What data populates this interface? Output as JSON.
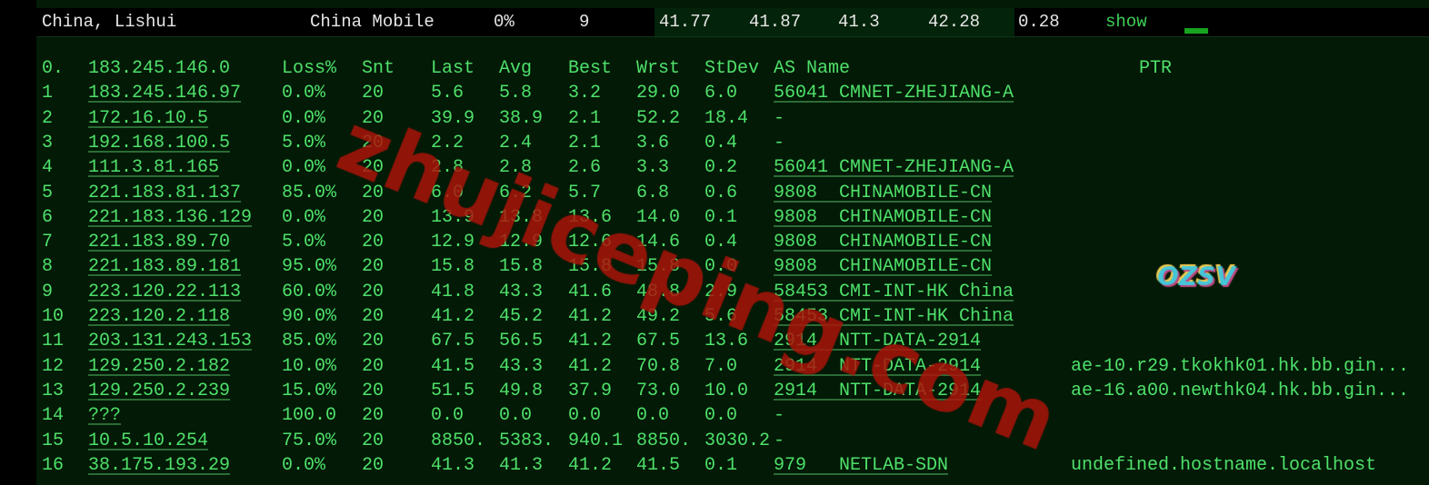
{
  "summary": {
    "location": "China, Lishui",
    "isp": "China Mobile",
    "loss": "0%",
    "hops": "9",
    "last": "41.77",
    "avg": "41.87",
    "best": "41.3",
    "worst": "42.28",
    "stdev": "0.28",
    "show_label": "show"
  },
  "header": {
    "num": "0.",
    "host": "183.245.146.0",
    "loss": "Loss%",
    "snt": "Snt",
    "last": "Last",
    "avg": "Avg",
    "best": "Best",
    "wrst": "Wrst",
    "stdev": "StDev",
    "as": "AS Name",
    "ptr": "PTR"
  },
  "rows": [
    {
      "num": "1",
      "host": "183.245.146.97",
      "loss": "0.0%",
      "snt": "20",
      "last": "5.6",
      "avg": "5.8",
      "best": "3.2",
      "wrst": "29.0",
      "stdev": "6.0",
      "as": "56041 CMNET-ZHEJIANG-A",
      "ptr": ""
    },
    {
      "num": "2",
      "host": "172.16.10.5",
      "loss": "0.0%",
      "snt": "20",
      "last": "39.9",
      "avg": "38.9",
      "best": "2.1",
      "wrst": "52.2",
      "stdev": "18.4",
      "as": "-",
      "ptr": ""
    },
    {
      "num": "3",
      "host": "192.168.100.5",
      "loss": "5.0%",
      "snt": "20",
      "last": "2.2",
      "avg": "2.4",
      "best": "2.1",
      "wrst": "3.6",
      "stdev": "0.4",
      "as": "-",
      "ptr": ""
    },
    {
      "num": "4",
      "host": "111.3.81.165",
      "loss": "0.0%",
      "snt": "20",
      "last": "2.8",
      "avg": "2.8",
      "best": "2.6",
      "wrst": "3.3",
      "stdev": "0.2",
      "as": "56041 CMNET-ZHEJIANG-A",
      "ptr": ""
    },
    {
      "num": "5",
      "host": "221.183.81.137",
      "loss": "85.0%",
      "snt": "20",
      "last": "6.0",
      "avg": "6.2",
      "best": "5.7",
      "wrst": "6.8",
      "stdev": "0.6",
      "as": "9808  CHINAMOBILE-CN",
      "ptr": ""
    },
    {
      "num": "6",
      "host": "221.183.136.129",
      "loss": "0.0%",
      "snt": "20",
      "last": "13.9",
      "avg": "13.8",
      "best": "13.6",
      "wrst": "14.0",
      "stdev": "0.1",
      "as": "9808  CHINAMOBILE-CN",
      "ptr": ""
    },
    {
      "num": "7",
      "host": "221.183.89.70",
      "loss": "5.0%",
      "snt": "20",
      "last": "12.9",
      "avg": "12.9",
      "best": "12.6",
      "wrst": "14.6",
      "stdev": "0.4",
      "as": "9808  CHINAMOBILE-CN",
      "ptr": ""
    },
    {
      "num": "8",
      "host": "221.183.89.181",
      "loss": "95.0%",
      "snt": "20",
      "last": "15.8",
      "avg": "15.8",
      "best": "15.8",
      "wrst": "15.8",
      "stdev": "0.0",
      "as": "9808  CHINAMOBILE-CN",
      "ptr": ""
    },
    {
      "num": "9",
      "host": "223.120.22.113",
      "loss": "60.0%",
      "snt": "20",
      "last": "41.8",
      "avg": "43.3",
      "best": "41.6",
      "wrst": "48.8",
      "stdev": "2.9",
      "as": "58453 CMI-INT-HK China",
      "ptr": ""
    },
    {
      "num": "10",
      "host": "223.120.2.118",
      "loss": "90.0%",
      "snt": "20",
      "last": "41.2",
      "avg": "45.2",
      "best": "41.2",
      "wrst": "49.2",
      "stdev": "5.6",
      "as": "58453 CMI-INT-HK China",
      "ptr": ""
    },
    {
      "num": "11",
      "host": "203.131.243.153",
      "loss": "85.0%",
      "snt": "20",
      "last": "67.5",
      "avg": "56.5",
      "best": "41.2",
      "wrst": "67.5",
      "stdev": "13.6",
      "as": "2914  NTT-DATA-2914",
      "ptr": ""
    },
    {
      "num": "12",
      "host": "129.250.2.182",
      "loss": "10.0%",
      "snt": "20",
      "last": "41.5",
      "avg": "43.3",
      "best": "41.2",
      "wrst": "70.8",
      "stdev": "7.0",
      "as": "2914  NTT-DATA-2914",
      "ptr": "ae-10.r29.tkokhk01.hk.bb.gin..."
    },
    {
      "num": "13",
      "host": "129.250.2.239",
      "loss": "15.0%",
      "snt": "20",
      "last": "51.5",
      "avg": "49.8",
      "best": "37.9",
      "wrst": "73.0",
      "stdev": "10.0",
      "as": "2914  NTT-DATA-2914",
      "ptr": "ae-16.a00.newthk04.hk.bb.gin..."
    },
    {
      "num": "14",
      "host": "???",
      "loss": "100.0",
      "snt": "20",
      "last": "0.0",
      "avg": "0.0",
      "best": "0.0",
      "wrst": "0.0",
      "stdev": "0.0",
      "as": "-",
      "ptr": ""
    },
    {
      "num": "15",
      "host": "10.5.10.254",
      "loss": "75.0%",
      "snt": "20",
      "last": "8850.",
      "avg": "5383.",
      "best": "940.1",
      "wrst": "8850.",
      "stdev": "3030.2",
      "as": "-",
      "ptr": ""
    },
    {
      "num": "16",
      "host": "38.175.193.29",
      "loss": "0.0%",
      "snt": "20",
      "last": "41.3",
      "avg": "41.3",
      "best": "41.2",
      "wrst": "41.5",
      "stdev": "0.1",
      "as": "979   NETLAB-SDN",
      "ptr": "undefined.hostname.localhost"
    }
  ],
  "watermark": "zhujiceping.com",
  "logo": "OZSV",
  "colors": {
    "text": "#4fe06a",
    "background": "#021a06",
    "watermark": "#aa140a",
    "bar": "#17a51f"
  }
}
